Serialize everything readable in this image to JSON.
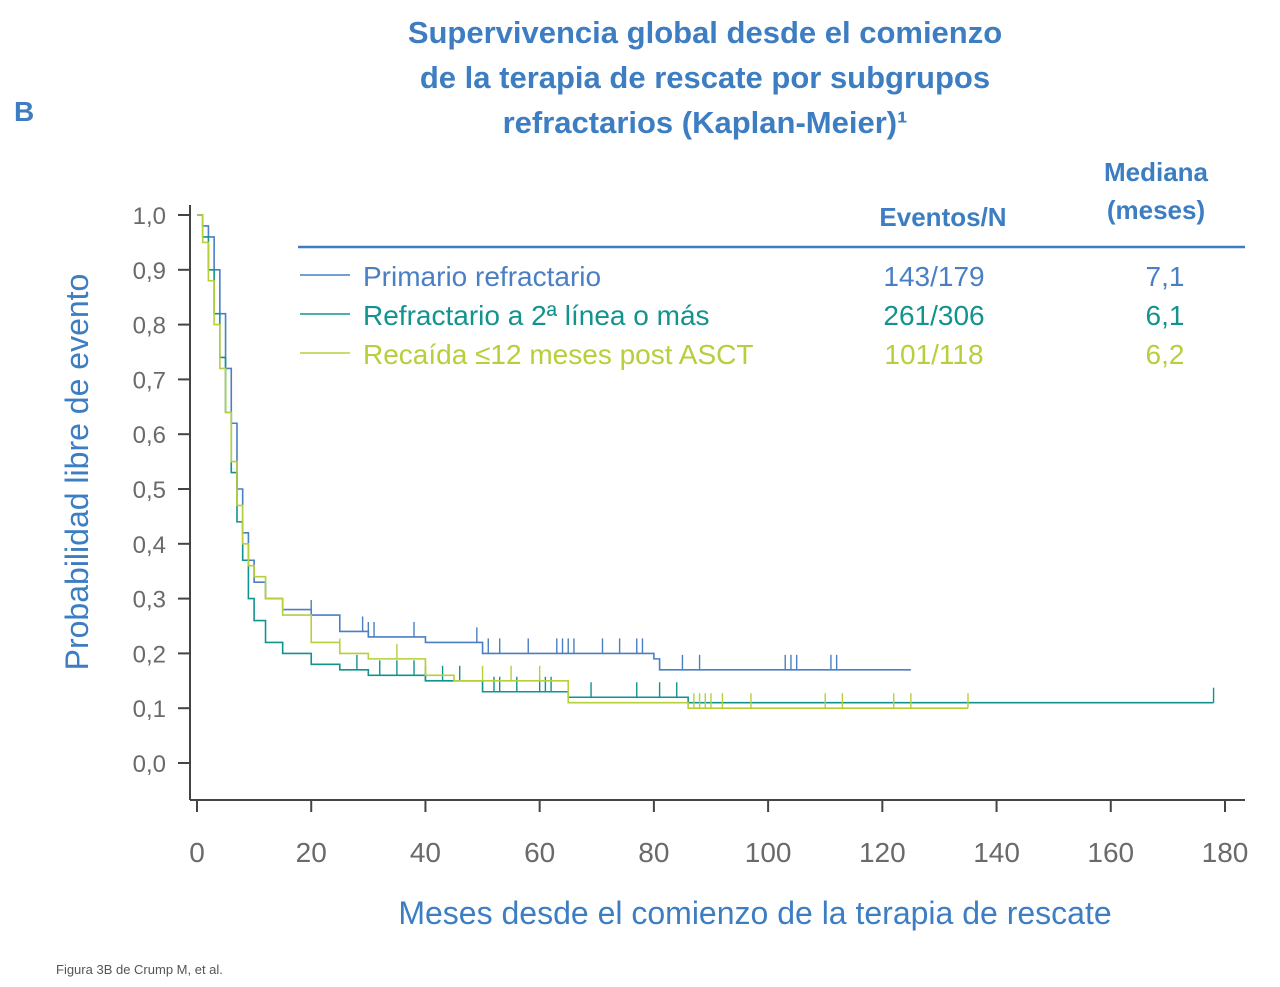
{
  "panel_letter": "B",
  "title_lines": [
    "Supervivencia global desde el comienzo",
    "de la terapia de rescate por subgrupos",
    "refractarios (Kaplan-Meier)¹"
  ],
  "footnote": "Figura 3B de Crump M, et al.",
  "colors": {
    "title": "#3d7dc2",
    "primario": "#4a7fc4",
    "refractario2": "#13938f",
    "recaida": "#b6cf3a",
    "axis": "#444444"
  },
  "legend": {
    "col_events": "Eventos/N",
    "col_median_line1": "Mediana",
    "col_median_line2": "(meses)",
    "rows": [
      {
        "label": "Primario refractario",
        "events": "143/179",
        "median": "7,1"
      },
      {
        "label": "Refractario a 2ª línea o más",
        "events": "261/306",
        "median": "6,1"
      },
      {
        "label": "Recaída ≤12 meses post ASCT",
        "events": "101/118",
        "median": "6,2"
      }
    ]
  },
  "chart_data": {
    "type": "line",
    "step": true,
    "xlabel": "Meses desde el comienzo de la terapia de rescate",
    "ylabel": "Probabilidad libre de evento",
    "xlim": [
      0,
      180
    ],
    "ylim": [
      0,
      1
    ],
    "x_ticks": [
      "0",
      "20",
      "40",
      "60",
      "80",
      "100",
      "120",
      "140",
      "160",
      "180"
    ],
    "y_ticks": [
      "0,0",
      "0,1",
      "0,2",
      "0,3",
      "0,4",
      "0,5",
      "0,6",
      "0,7",
      "0,8",
      "0,9",
      "1,0"
    ],
    "series": [
      {
        "name": "Primario refractario",
        "points": [
          [
            0,
            1.0
          ],
          [
            1,
            0.98
          ],
          [
            2,
            0.96
          ],
          [
            3,
            0.9
          ],
          [
            4,
            0.82
          ],
          [
            5,
            0.72
          ],
          [
            6,
            0.62
          ],
          [
            7,
            0.5
          ],
          [
            8,
            0.42
          ],
          [
            9,
            0.37
          ],
          [
            10,
            0.33
          ],
          [
            12,
            0.3
          ],
          [
            15,
            0.28
          ],
          [
            20,
            0.27
          ],
          [
            25,
            0.24
          ],
          [
            30,
            0.23
          ],
          [
            40,
            0.22
          ],
          [
            50,
            0.2
          ],
          [
            80,
            0.19
          ],
          [
            81,
            0.17
          ],
          [
            125,
            0.17
          ]
        ],
        "censor_x": [
          20,
          29,
          30,
          31,
          38,
          49,
          51,
          53,
          58,
          63,
          64,
          65,
          66,
          71,
          74,
          77,
          78,
          85,
          88,
          103,
          104,
          105,
          111,
          112
        ]
      },
      {
        "name": "Refractario a 2ª línea o más",
        "points": [
          [
            0,
            1.0
          ],
          [
            1,
            0.96
          ],
          [
            2,
            0.9
          ],
          [
            3,
            0.82
          ],
          [
            4,
            0.74
          ],
          [
            5,
            0.64
          ],
          [
            6,
            0.53
          ],
          [
            7,
            0.44
          ],
          [
            8,
            0.37
          ],
          [
            9,
            0.3
          ],
          [
            10,
            0.26
          ],
          [
            12,
            0.22
          ],
          [
            15,
            0.2
          ],
          [
            20,
            0.18
          ],
          [
            25,
            0.17
          ],
          [
            30,
            0.16
          ],
          [
            40,
            0.15
          ],
          [
            50,
            0.13
          ],
          [
            65,
            0.12
          ],
          [
            80,
            0.12
          ],
          [
            86,
            0.11
          ],
          [
            178,
            0.11
          ]
        ],
        "censor_x": [
          28,
          32,
          35,
          38,
          40,
          43,
          46,
          52,
          53,
          56,
          60,
          61,
          62,
          69,
          77,
          81,
          84,
          178
        ]
      },
      {
        "name": "Recaída ≤12 meses post ASCT",
        "points": [
          [
            0,
            1.0
          ],
          [
            1,
            0.95
          ],
          [
            2,
            0.88
          ],
          [
            3,
            0.8
          ],
          [
            4,
            0.72
          ],
          [
            5,
            0.64
          ],
          [
            6,
            0.55
          ],
          [
            7,
            0.47
          ],
          [
            8,
            0.4
          ],
          [
            9,
            0.36
          ],
          [
            10,
            0.34
          ],
          [
            12,
            0.3
          ],
          [
            15,
            0.27
          ],
          [
            20,
            0.22
          ],
          [
            25,
            0.2
          ],
          [
            30,
            0.19
          ],
          [
            40,
            0.16
          ],
          [
            45,
            0.15
          ],
          [
            55,
            0.15
          ],
          [
            65,
            0.11
          ],
          [
            80,
            0.11
          ],
          [
            86,
            0.1
          ],
          [
            135,
            0.1
          ]
        ],
        "censor_x": [
          25,
          35,
          40,
          50,
          55,
          60,
          87,
          88,
          89,
          90,
          92,
          97,
          110,
          113,
          122,
          125,
          135
        ]
      }
    ]
  }
}
